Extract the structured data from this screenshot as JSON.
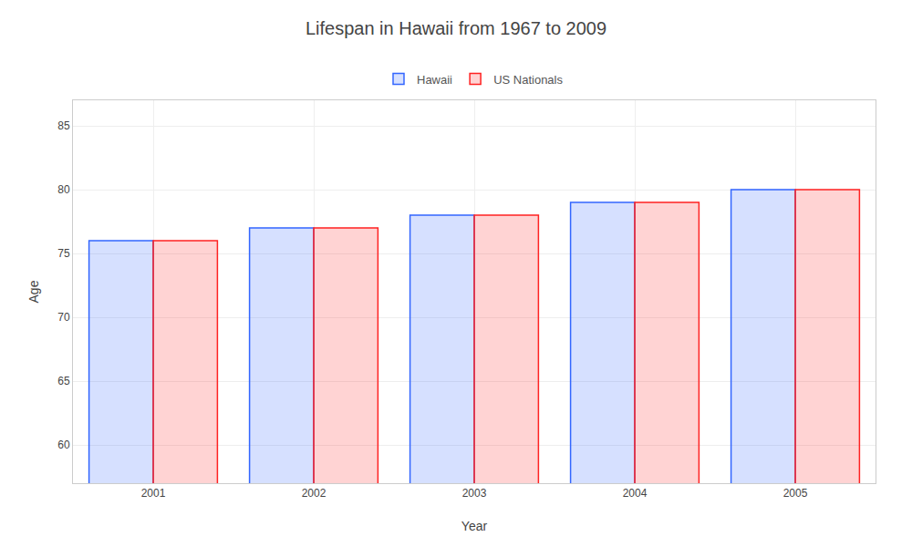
{
  "chart_data": {
    "type": "bar",
    "title": "Lifespan in Hawaii from 1967 to 2009",
    "xlabel": "Year",
    "ylabel": "Age",
    "categories": [
      "2001",
      "2002",
      "2003",
      "2004",
      "2005"
    ],
    "series": [
      {
        "name": "Hawaii",
        "color": "#3366ff",
        "values": [
          76,
          77,
          78,
          79,
          80
        ]
      },
      {
        "name": "US Nationals",
        "color": "#ff2222",
        "values": [
          76,
          77,
          78,
          79,
          80
        ]
      }
    ],
    "ylim": [
      57,
      87
    ],
    "yticks": [
      60,
      65,
      70,
      75,
      80,
      85
    ],
    "grid": true,
    "legend": "top"
  }
}
